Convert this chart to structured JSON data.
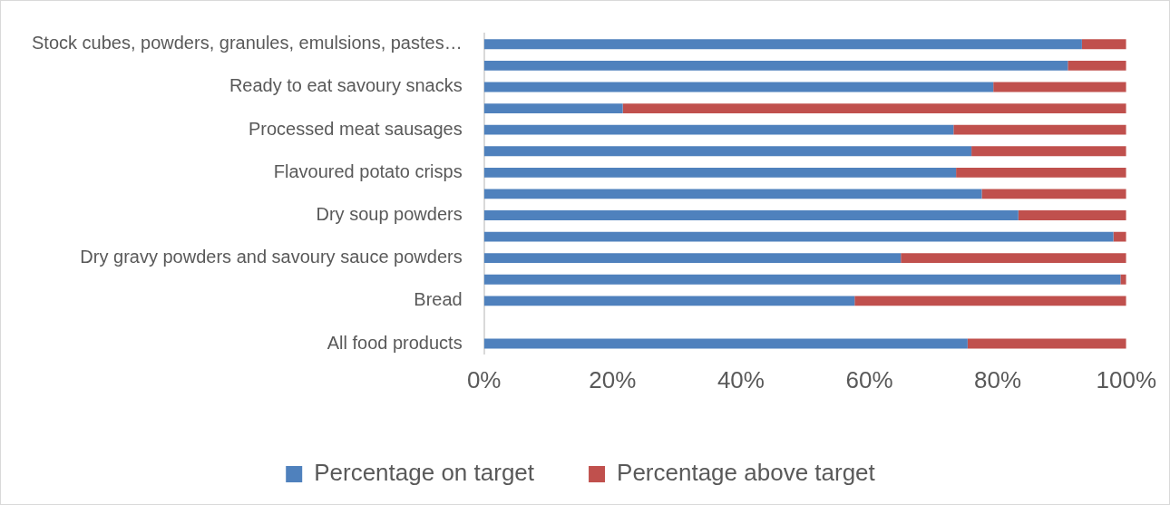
{
  "chart_data": {
    "type": "bar",
    "orientation": "horizontal",
    "stacked": true,
    "categories": [
      "Stock cubes, powders, granules, emulsions, pastes…",
      null,
      "Ready to eat savoury snacks",
      null,
      "Processed meat sausages",
      null,
      "Flavoured potato crisps",
      null,
      "Dry soup powders",
      null,
      "Dry gravy powders and savoury sauce powders",
      null,
      "Bread",
      null,
      "All food products"
    ],
    "series": [
      {
        "name": "Percentage on target",
        "color": "#4f81bd",
        "values": [
          93.1,
          90.9,
          79.3,
          21.6,
          73.1,
          75.9,
          73.5,
          77.5,
          83.2,
          98.0,
          64.9,
          99.1,
          57.7,
          null,
          75.3
        ]
      },
      {
        "name": "Percentage above target",
        "color": "#c0504d",
        "values": [
          6.9,
          9.1,
          20.7,
          78.4,
          26.9,
          24.1,
          26.5,
          22.5,
          16.8,
          2.0,
          35.1,
          0.9,
          42.3,
          null,
          24.7
        ]
      }
    ],
    "xlim": [
      0,
      100
    ],
    "xticks": [
      {
        "value": 0,
        "label": "0%"
      },
      {
        "value": 20,
        "label": "20%"
      },
      {
        "value": 40,
        "label": "40%"
      },
      {
        "value": 60,
        "label": "60%"
      },
      {
        "value": 80,
        "label": "80%"
      },
      {
        "value": 100,
        "label": "100%"
      }
    ],
    "grid": false,
    "legend": "bottom"
  }
}
